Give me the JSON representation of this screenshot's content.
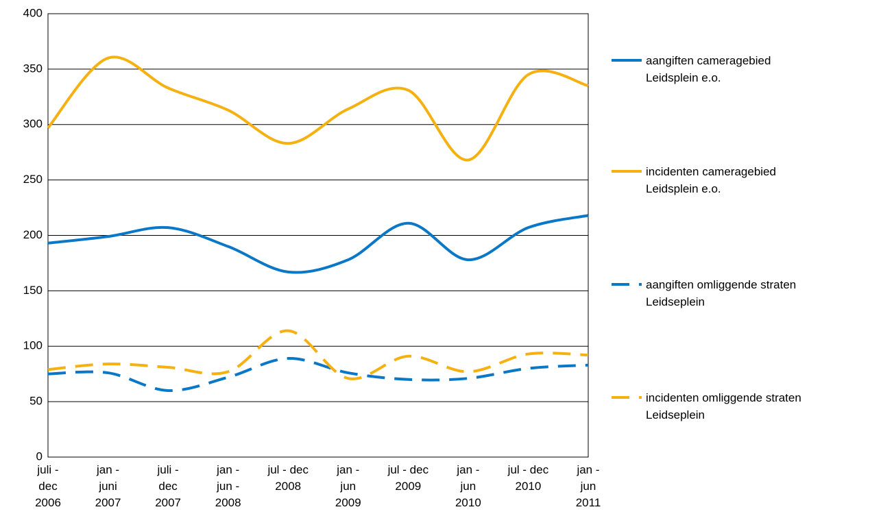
{
  "chart_data": {
    "type": "line",
    "categories": [
      "juli -\ndec\n2006",
      "jan -\njuni\n2007",
      "juli -\ndec\n2007",
      "jan -\njun -\n2008",
      "jul - dec\n2008",
      "jan -\njun\n2009",
      "jul - dec\n2009",
      "jan -\njun\n2010",
      "jul - dec\n2010",
      "jan -\njun\n2011"
    ],
    "series": [
      {
        "name": "aangiften cameragebied\nLeidsplein e.o.",
        "color": "#0a78c6",
        "dashed": false,
        "values": [
          193,
          199,
          207,
          190,
          167,
          178,
          211,
          178,
          207,
          218
        ]
      },
      {
        "name": "incidenten cameragebied\nLeidsplein e.o.",
        "color": "#f5b111",
        "dashed": false,
        "values": [
          297,
          360,
          333,
          313,
          283,
          314,
          331,
          268,
          345,
          335
        ]
      },
      {
        "name": "aangiften omliggende straten\nLeidseplein",
        "color": "#0a78c6",
        "dashed": true,
        "values": [
          75,
          76,
          60,
          72,
          89,
          76,
          70,
          71,
          80,
          83
        ]
      },
      {
        "name": "incidenten omliggende straten\nLeidseplein",
        "color": "#f5b111",
        "dashed": true,
        "values": [
          79,
          84,
          81,
          77,
          114,
          71,
          91,
          77,
          93,
          92
        ]
      }
    ],
    "ylim": [
      0,
      400
    ],
    "yticks": [
      0,
      50,
      100,
      150,
      200,
      250,
      300,
      350,
      400
    ],
    "grid": true,
    "legend": "right"
  }
}
